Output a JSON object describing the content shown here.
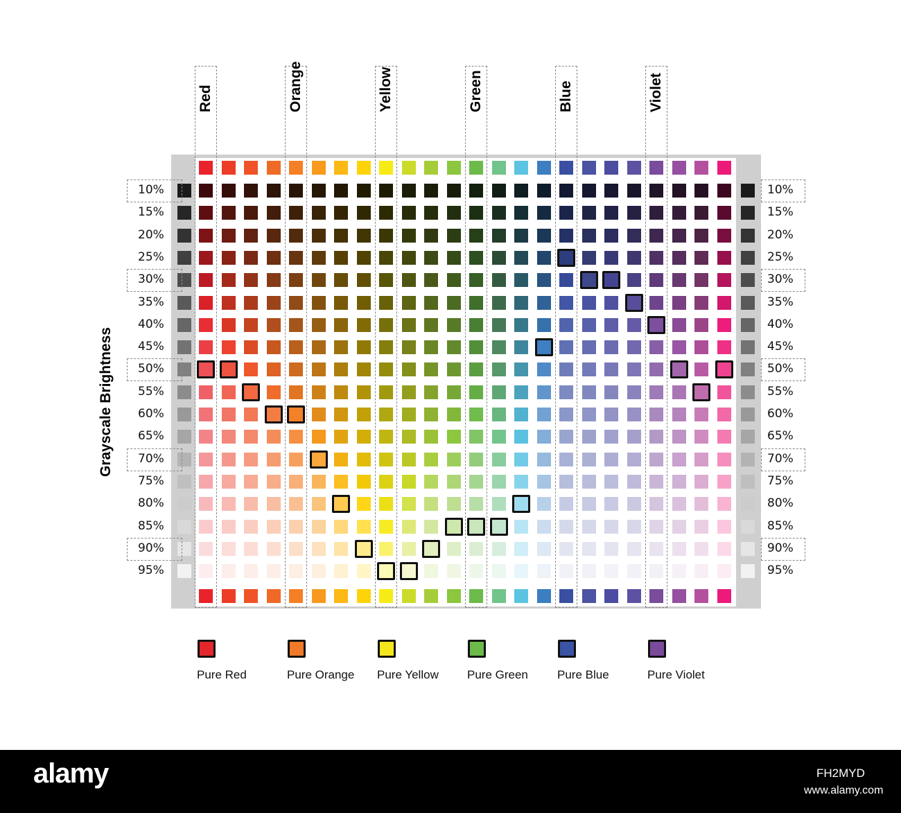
{
  "hues": [
    "Red",
    "Orange",
    "Yellow",
    "Green",
    "Blue",
    "Violet"
  ],
  "levels": [
    "10%",
    "15%",
    "20%",
    "25%",
    "30%",
    "35%",
    "40%",
    "45%",
    "50%",
    "55%",
    "60%",
    "65%",
    "70%",
    "75%",
    "80%",
    "85%",
    "90%",
    "95%"
  ],
  "axis_label": "Grayscale Brightness",
  "legend": [
    {
      "label": "Pure Red",
      "color": "#e3262b"
    },
    {
      "label": "Pure Orange",
      "color": "#f07a27"
    },
    {
      "label": "Pure Yellow",
      "color": "#f5e71c"
    },
    {
      "label": "Pure Green",
      "color": "#6cba4a"
    },
    {
      "label": "Pure Blue",
      "color": "#3a53a4"
    },
    {
      "label": "Pure Violet",
      "color": "#7b4b9b"
    }
  ],
  "base_colors": [
    "#e8232b",
    "#ec3d27",
    "#ef5327",
    "#f06a27",
    "#f47f25",
    "#f79a1e",
    "#fdb913",
    "#fed309",
    "#f7eb16",
    "#cbdb2a",
    "#a5cd39",
    "#8dc63f",
    "#6cbb4a",
    "#71c48b",
    "#5bc4e3",
    "#3d7ec1",
    "#3a4fa2",
    "#4a54a3",
    "#4c4ca1",
    "#5c51a3",
    "#7a4c9c",
    "#9550a1",
    "#b4519f",
    "#ec1b7a"
  ],
  "highlights": [
    {
      "row": 3,
      "col": 16
    },
    {
      "row": 4,
      "col": 17
    },
    {
      "row": 4,
      "col": 18
    },
    {
      "row": 5,
      "col": 19
    },
    {
      "row": 6,
      "col": 20
    },
    {
      "row": 7,
      "col": 15
    },
    {
      "row": 8,
      "col": 0
    },
    {
      "row": 8,
      "col": 1
    },
    {
      "row": 8,
      "col": 21
    },
    {
      "row": 8,
      "col": 23
    },
    {
      "row": 9,
      "col": 2
    },
    {
      "row": 9,
      "col": 22
    },
    {
      "row": 10,
      "col": 3
    },
    {
      "row": 10,
      "col": 4
    },
    {
      "row": 12,
      "col": 5
    },
    {
      "row": 14,
      "col": 6
    },
    {
      "row": 14,
      "col": 14
    },
    {
      "row": 15,
      "col": 11
    },
    {
      "row": 15,
      "col": 12
    },
    {
      "row": 15,
      "col": 13
    },
    {
      "row": 16,
      "col": 7
    },
    {
      "row": 16,
      "col": 10
    },
    {
      "row": 17,
      "col": 8
    },
    {
      "row": 17,
      "col": 9
    }
  ],
  "footer": {
    "brand": "alamy",
    "image_id": "FH2MYD",
    "site": "www.alamy.com"
  }
}
